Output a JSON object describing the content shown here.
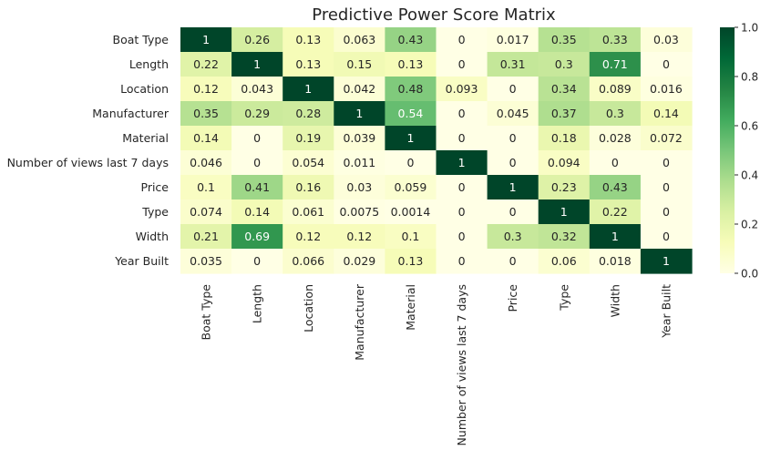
{
  "chart_data": {
    "type": "heatmap",
    "title": "Predictive Power Score Matrix",
    "rows": [
      "Boat Type",
      "Length",
      "Location",
      "Manufacturer",
      "Material",
      "Number of views last 7 days",
      "Price",
      "Type",
      "Width",
      "Year Built"
    ],
    "columns": [
      "Boat Type",
      "Length",
      "Location",
      "Manufacturer",
      "Material",
      "Number of views last 7 days",
      "Price",
      "Type",
      "Width",
      "Year Built"
    ],
    "values": [
      [
        1,
        0.26,
        0.13,
        0.063,
        0.43,
        0,
        0.017,
        0.35,
        0.33,
        0.03
      ],
      [
        0.22,
        1,
        0.13,
        0.15,
        0.13,
        0,
        0.31,
        0.3,
        0.71,
        0
      ],
      [
        0.12,
        0.043,
        1,
        0.042,
        0.48,
        0.093,
        0,
        0.34,
        0.089,
        0.016
      ],
      [
        0.35,
        0.29,
        0.28,
        1,
        0.54,
        0,
        0.045,
        0.37,
        0.3,
        0.14
      ],
      [
        0.14,
        0,
        0.19,
        0.039,
        1,
        0,
        0,
        0.18,
        0.028,
        0.072
      ],
      [
        0.046,
        0,
        0.054,
        0.011,
        0,
        1,
        0,
        0.094,
        0,
        0
      ],
      [
        0.1,
        0.41,
        0.16,
        0.03,
        0.059,
        0,
        1,
        0.23,
        0.43,
        0
      ],
      [
        0.074,
        0.14,
        0.061,
        0.0075,
        0.0014,
        0,
        0,
        1,
        0.22,
        0
      ],
      [
        0.21,
        0.69,
        0.12,
        0.12,
        0.1,
        0,
        0.3,
        0.32,
        1,
        0
      ],
      [
        0.035,
        0,
        0.066,
        0.029,
        0.13,
        0,
        0,
        0.06,
        0.018,
        1
      ]
    ],
    "colormap": "YlGn",
    "vmin": 0,
    "vmax": 1,
    "colorbar_ticks": [
      "0.0",
      "0.2",
      "0.4",
      "0.6",
      "0.8",
      "1.0"
    ],
    "annotations": true,
    "grid": false
  }
}
